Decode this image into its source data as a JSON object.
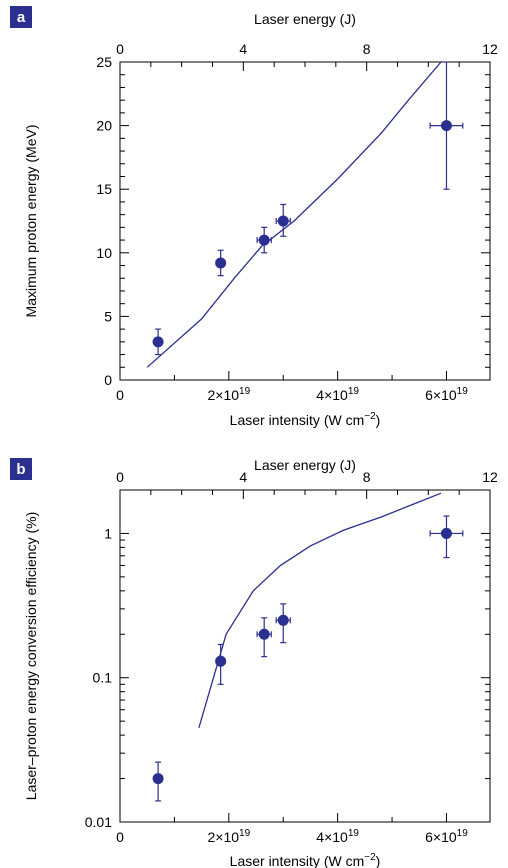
{
  "chart_data": [
    {
      "type": "scatter",
      "panel_label": "a",
      "xlabel": "Laser intensity (W cm",
      "xlabel_sup": "−2",
      "xlabel_close": ")",
      "top_xlabel": "Laser energy (J)",
      "ylabel": "Maximum proton energy (MeV)",
      "xlim": [
        0,
        6.8e+19
      ],
      "ylim": [
        0,
        25
      ],
      "yscale": "linear",
      "x_tick_labels": [
        {
          "value": 0,
          "base": "0",
          "exp": ""
        },
        {
          "value": 2e+19,
          "base": "2×10",
          "exp": "19"
        },
        {
          "value": 4e+19,
          "base": "4×10",
          "exp": "19"
        },
        {
          "value": 6e+19,
          "base": "6×10",
          "exp": "19"
        }
      ],
      "top_xlim": [
        0,
        12
      ],
      "top_tick_labels": [
        "0",
        "4",
        "8",
        "12"
      ],
      "top_tick_values": [
        0,
        4,
        8,
        12
      ],
      "y_tick_labels": [
        "0",
        "5",
        "10",
        "15",
        "20",
        "25"
      ],
      "y_tick_values": [
        0,
        5,
        10,
        15,
        20,
        25
      ],
      "series": [
        {
          "kind": "points",
          "x": [
            7e+18,
            1.85e+19,
            2.65e+19,
            3e+19,
            6e+19
          ],
          "y": [
            3.0,
            9.2,
            11.0,
            12.5,
            20.0
          ],
          "x_err": [
            0,
            8e+17,
            1.3e+18,
            1.3e+18,
            3e+18
          ],
          "y_err_low": [
            1.0,
            1.0,
            1.0,
            1.2,
            5.0
          ],
          "y_err_high": [
            1.0,
            1.0,
            1.0,
            1.3,
            5.0
          ]
        },
        {
          "kind": "line",
          "x": [
            5e+18,
            1.5e+19,
            2.1e+19,
            2.6e+19,
            3.2e+19,
            4e+19,
            4.8e+19,
            5.3e+19,
            5.9e+19
          ],
          "y": [
            1.0,
            4.8,
            8.0,
            10.5,
            12.5,
            15.8,
            19.4,
            22.0,
            25.0
          ]
        }
      ]
    },
    {
      "type": "scatter",
      "panel_label": "b",
      "xlabel": "Laser intensity (W cm",
      "xlabel_sup": "−2",
      "xlabel_close": ")",
      "top_xlabel": "Laser energy (J)",
      "ylabel": "Laser–proton energy conversion efficiency (%)",
      "xlim": [
        0,
        6.8e+19
      ],
      "ylim": [
        0.01,
        2
      ],
      "yscale": "log",
      "x_tick_labels": [
        {
          "value": 0,
          "base": "0",
          "exp": ""
        },
        {
          "value": 2e+19,
          "base": "2×10",
          "exp": "19"
        },
        {
          "value": 4e+19,
          "base": "4×10",
          "exp": "19"
        },
        {
          "value": 6e+19,
          "base": "6×10",
          "exp": "19"
        }
      ],
      "top_xlim": [
        0,
        12
      ],
      "top_tick_labels": [
        "0",
        "4",
        "8",
        "12"
      ],
      "top_tick_values": [
        0,
        4,
        8,
        12
      ],
      "y_tick_labels": [
        "0.01",
        "0.1",
        "1"
      ],
      "y_tick_values": [
        0.01,
        0.1,
        1
      ],
      "series": [
        {
          "kind": "points",
          "x": [
            7e+18,
            1.85e+19,
            2.65e+19,
            3e+19,
            6e+19
          ],
          "y": [
            0.02,
            0.13,
            0.2,
            0.25,
            1.0
          ],
          "x_err": [
            0,
            8e+17,
            1.3e+18,
            1.3e+18,
            3e+18
          ],
          "y_err_low": [
            0.006,
            0.04,
            0.06,
            0.075,
            0.32
          ],
          "y_err_high": [
            0.006,
            0.04,
            0.06,
            0.075,
            0.32
          ]
        },
        {
          "kind": "line",
          "x": [
            1.45e+19,
            1.95e+19,
            2.45e+19,
            2.95e+19,
            3.5e+19,
            4.1e+19,
            4.8e+19,
            5.4e+19,
            5.9e+19
          ],
          "y": [
            0.045,
            0.2,
            0.4,
            0.6,
            0.82,
            1.05,
            1.3,
            1.6,
            1.9
          ]
        }
      ]
    }
  ]
}
